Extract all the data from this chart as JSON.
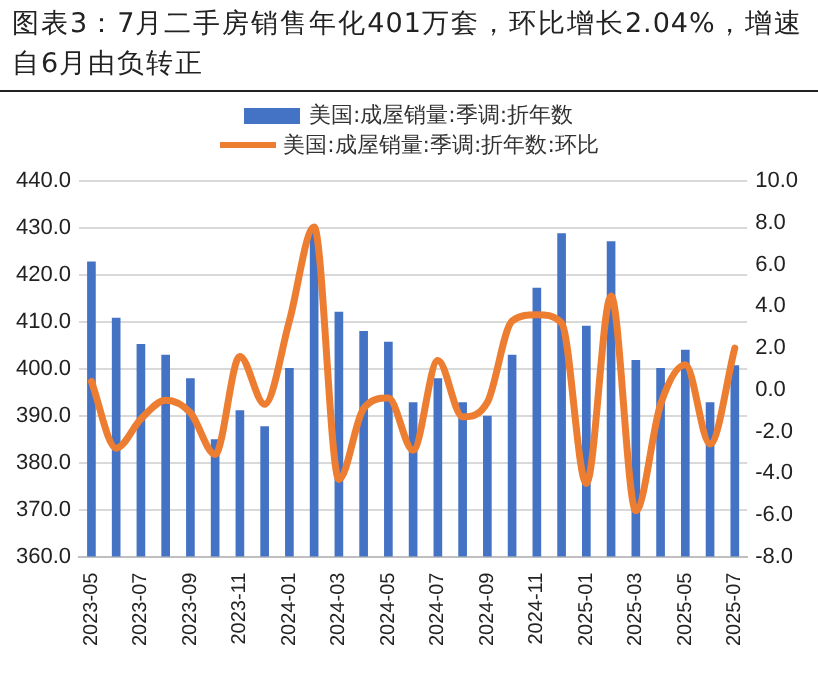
{
  "chart_data": {
    "type": "bar",
    "title": "图表3：7月二手房销售年化401万套，环比增长2.04%，增速自6月由负转正",
    "categories": [
      "2023-05",
      null,
      "2023-07",
      null,
      "2023-09",
      null,
      "2023-11",
      null,
      "2024-01",
      null,
      "2024-03",
      null,
      "2024-05",
      null,
      "2024-07",
      null,
      "2024-09",
      null,
      "2024-11",
      null,
      "2025-01",
      null,
      "2025-03",
      null,
      "2025-05",
      null,
      "2025-07"
    ],
    "series": [
      {
        "name": "美国:成屋销量:季调:折年数",
        "color": "#4472c4",
        "values": [
          422.9,
          410.9,
          405.3,
          403.0,
          398.0,
          385.0,
          391.2,
          387.8,
          400.2,
          429.0,
          412.2,
          408.1,
          405.8,
          392.9,
          398.0,
          392.9,
          390.0,
          403.0,
          417.3,
          428.9,
          409.2,
          427.2,
          401.9,
          400.2,
          404.1,
          392.9,
          400.8
        ]
      },
      {
        "name": "美国:成屋销量:季调:折年数:环比",
        "type": "line",
        "axis": "y2",
        "color": "#ed7d31",
        "values": [
          0.4,
          -2.8,
          -1.4,
          -0.5,
          -1.1,
          -3.1,
          1.6,
          -0.7,
          3.3,
          7.8,
          -4.3,
          -0.9,
          -0.4,
          -2.9,
          1.4,
          -1.3,
          -0.6,
          3.3,
          3.6,
          3.2,
          -4.5,
          4.5,
          -5.8,
          -0.7,
          1.2,
          -2.6,
          2.0
        ]
      }
    ],
    "ylim": [
      360,
      440
    ],
    "yticks": [
      {
        "value": 360,
        "label": "360.0"
      },
      {
        "value": 370,
        "label": "370.0"
      },
      {
        "value": 380,
        "label": "380.0"
      },
      {
        "value": 390,
        "label": "390.0"
      },
      {
        "value": 400,
        "label": "400.0"
      },
      {
        "value": 410,
        "label": "410.0"
      },
      {
        "value": 420,
        "label": "420.0"
      },
      {
        "value": 430,
        "label": "430.0"
      },
      {
        "value": 440,
        "label": "440.0"
      }
    ],
    "y2lim": [
      -8,
      10
    ],
    "y2ticks": [
      {
        "value": -8,
        "label": "-8.0"
      },
      {
        "value": -6,
        "label": "-6.0"
      },
      {
        "value": -4,
        "label": "-4.0"
      },
      {
        "value": -2,
        "label": "-2.0"
      },
      {
        "value": 0,
        "label": "0.0"
      },
      {
        "value": 2,
        "label": "2.0"
      },
      {
        "value": 4,
        "label": "4.0"
      },
      {
        "value": 6,
        "label": "6.0"
      },
      {
        "value": 8,
        "label": "8.0"
      },
      {
        "value": 10,
        "label": "10.0"
      }
    ],
    "grid": "y",
    "legend": "top",
    "marker": "none",
    "line_style": "solid"
  }
}
